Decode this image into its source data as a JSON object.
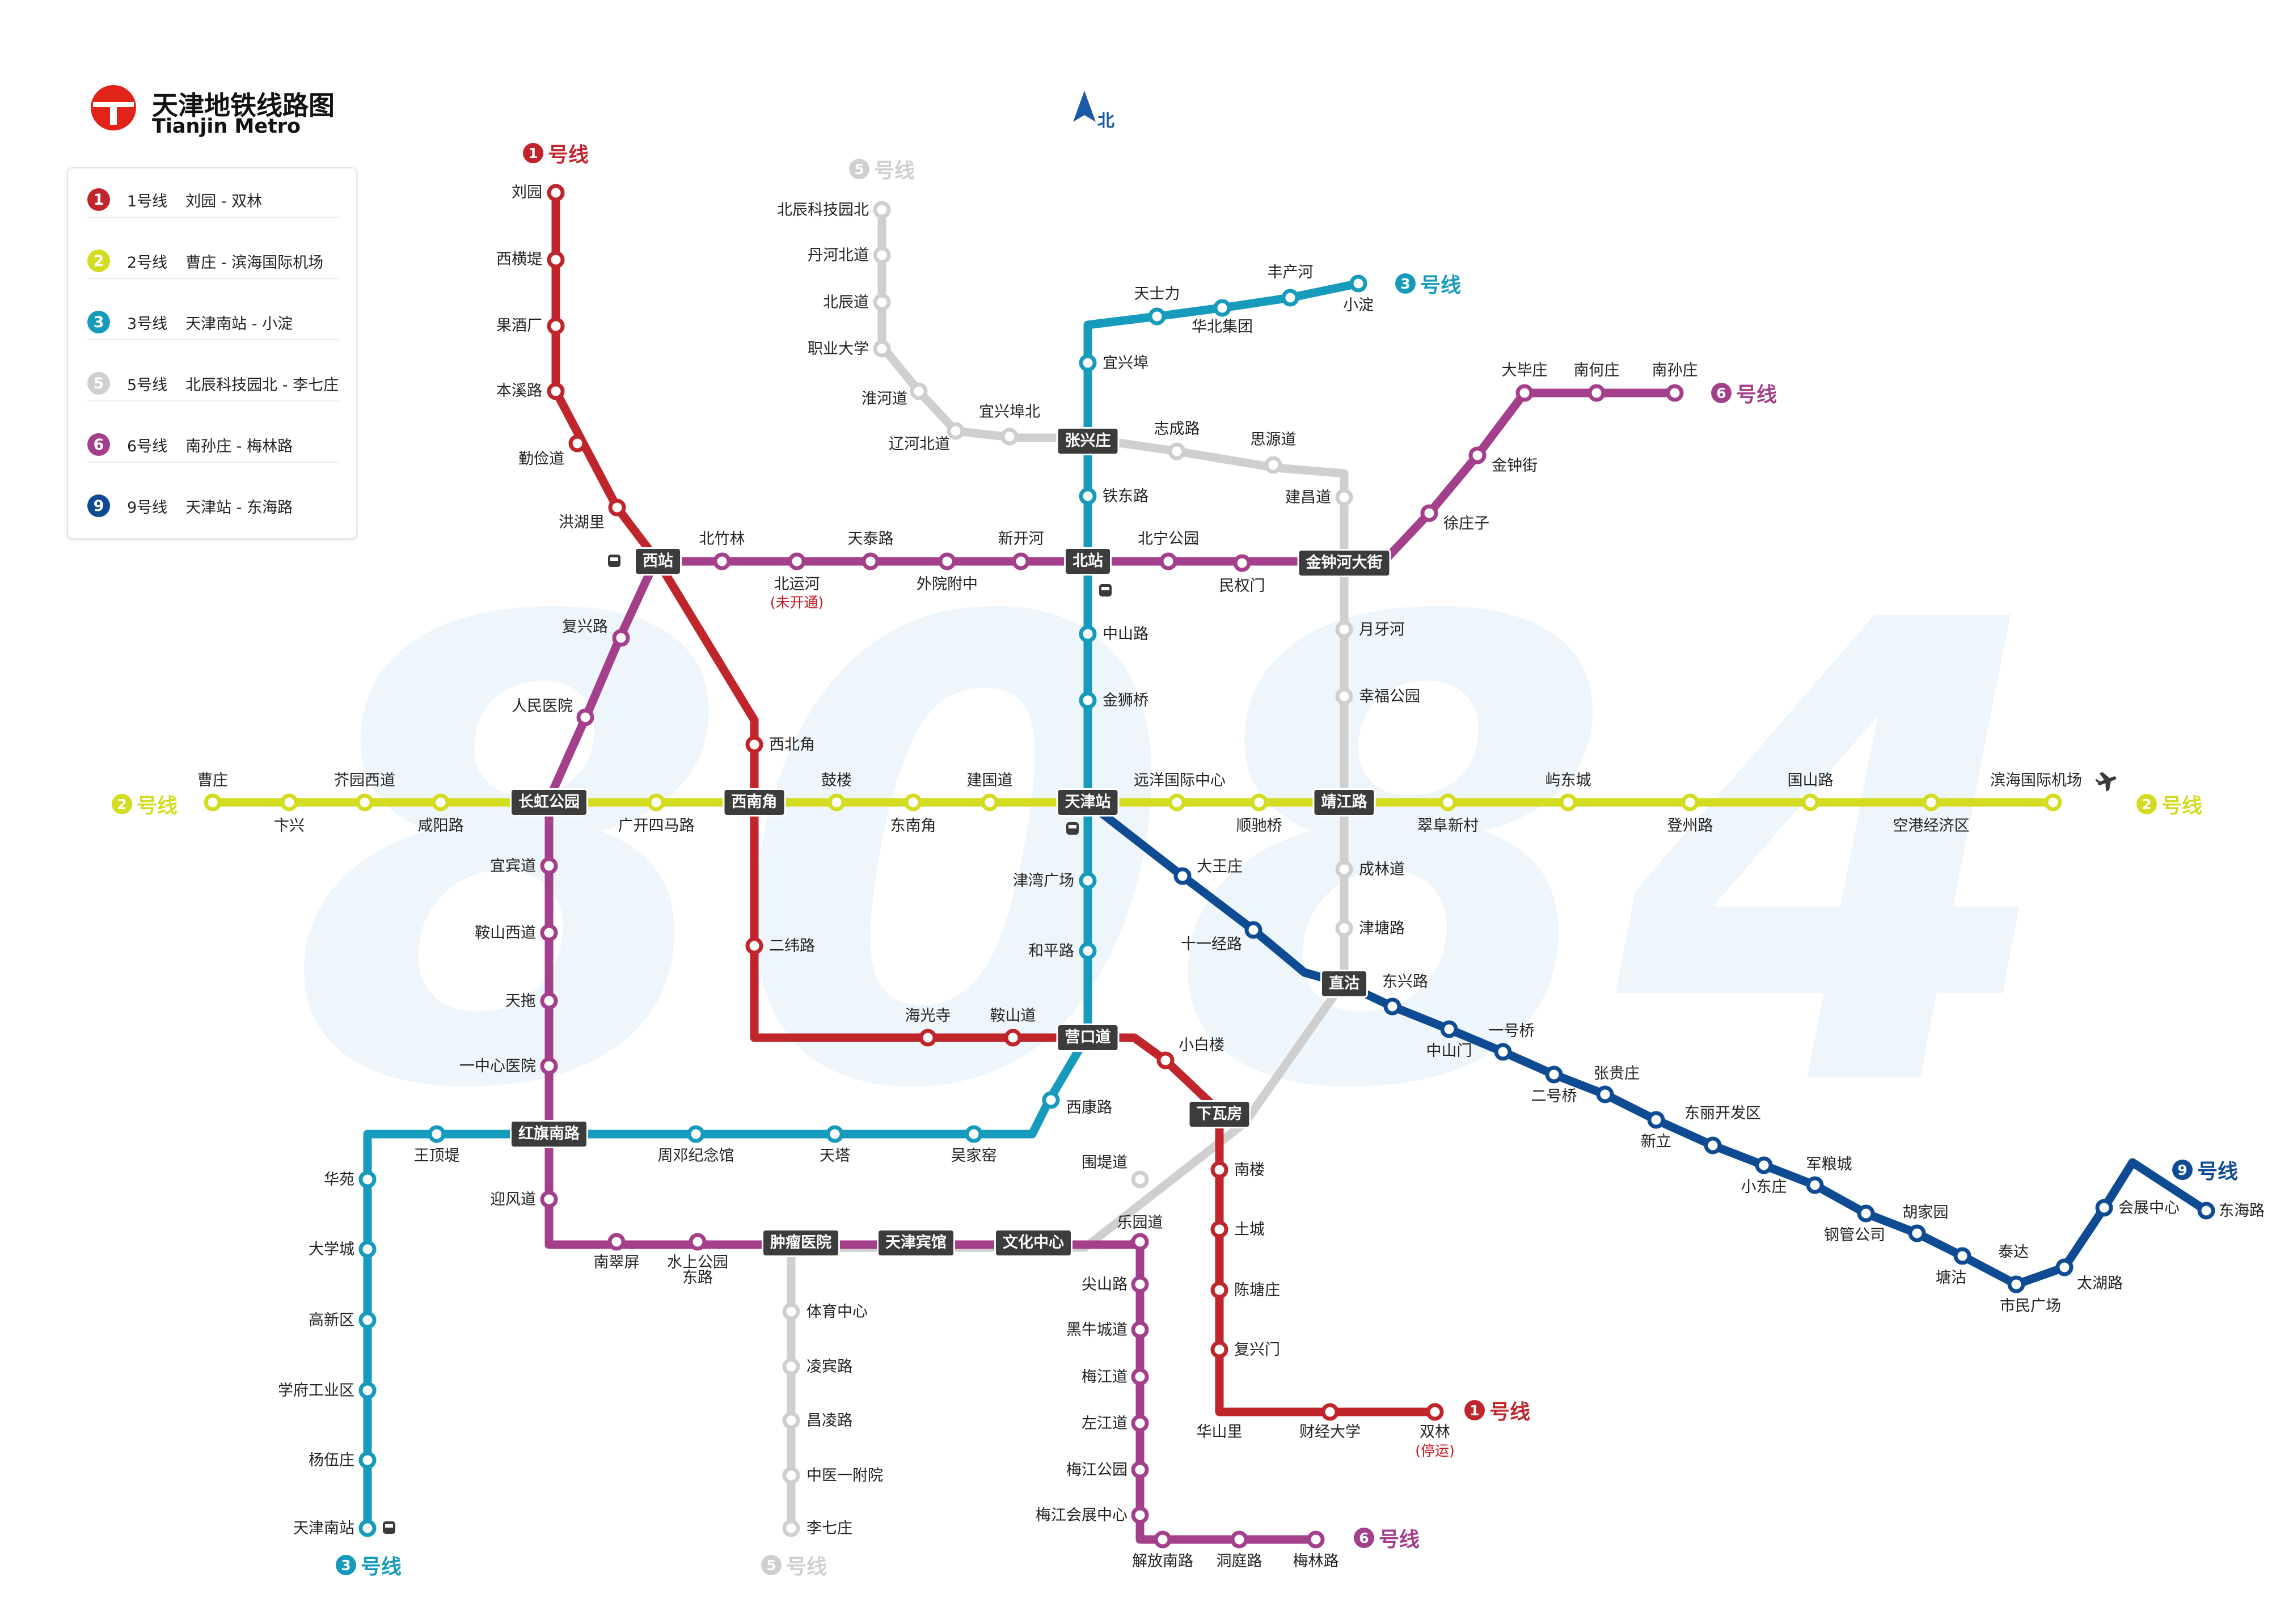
{
  "brand": {
    "title": "天津地铁线路图",
    "subtitle": "Tianjin Metro",
    "logo_color": "#e2231a"
  },
  "compass": {
    "label": "北",
    "color": "#1c5aa8"
  },
  "watermark": {
    "text": "8084",
    "color": "#eef6fc"
  },
  "legend": [
    {
      "num": "1",
      "name": "1号线",
      "route": "刘园 - 双林",
      "color": "#c0252b"
    },
    {
      "num": "2",
      "name": "2号线",
      "route": "曹庄 - 滨海国际机场",
      "color": "#d4dc21"
    },
    {
      "num": "3",
      "name": "3号线",
      "route": "天津南站 - 小淀",
      "color": "#169bbd"
    },
    {
      "num": "5",
      "name": "5号线",
      "route": "北辰科技园北 - 李七庄",
      "color": "#cfcfcf"
    },
    {
      "num": "6",
      "name": "6号线",
      "route": "南孙庄 - 梅林路",
      "color": "#a33f8b"
    },
    {
      "num": "9",
      "name": "9号线",
      "route": "天津站 - 东海路",
      "color": "#0e4b93"
    }
  ],
  "line_tags": {
    "l1_top": {
      "num": "1",
      "text": "号线"
    },
    "l1_end": {
      "num": "1",
      "text": "号线"
    },
    "l2_left": {
      "num": "2",
      "text": "号线"
    },
    "l2_right": {
      "num": "2",
      "text": "号线"
    },
    "l3_top": {
      "num": "3",
      "text": "号线"
    },
    "l3_bottom": {
      "num": "3",
      "text": "号线"
    },
    "l5_top": {
      "num": "5",
      "text": "号线"
    },
    "l5_bottom": {
      "num": "5",
      "text": "号线"
    },
    "l6_top": {
      "num": "6",
      "text": "号线"
    },
    "l6_bottom": {
      "num": "6",
      "text": "号线"
    },
    "l9": {
      "num": "9",
      "text": "号线"
    }
  },
  "interchanges": {
    "xizhan": "西站",
    "beizhan": "北站",
    "zhangxingzhuang": "张兴庄",
    "jinzhonghe": "金钟河大街",
    "changhong": "长虹公园",
    "xinanjiao": "西南角",
    "tianjinzhan": "天津站",
    "jingjianglu": "靖江路",
    "zhigu": "直沽",
    "yingkoudao": "营口道",
    "xiawafang": "下瓦房",
    "hongqinan": "红旗南路",
    "zhongliu": "肿瘤医院",
    "binguan": "天津宾馆",
    "wenhua": "文化中心"
  },
  "stations": {
    "l1": [
      "刘园",
      "西横堤",
      "果酒厂",
      "本溪路",
      "勤俭道",
      "洪湖里",
      "西北角",
      "二纬路",
      "海光寺",
      "鞍山道",
      "小白楼",
      "南楼",
      "土城",
      "陈塘庄",
      "复兴门",
      "华山里",
      "财经大学",
      "双林"
    ],
    "l1_note": "(停运)",
    "l2": [
      "曹庄",
      "卞兴",
      "芥园西道",
      "咸阳路",
      "广开四马路",
      "鼓楼",
      "东南角",
      "建国道",
      "远洋国际中心",
      "顺驰桥",
      "翠阜新村",
      "屿东城",
      "登州路",
      "国山路",
      "空港经济区",
      "滨海国际机场"
    ],
    "l3": [
      "小淀",
      "丰产河",
      "华北集团",
      "天士力",
      "宜兴埠",
      "铁东路",
      "中山路",
      "金狮桥",
      "津湾广场",
      "和平路",
      "西康路",
      "吴家窑",
      "天塔",
      "周邓纪念馆",
      "王顶堤",
      "华苑",
      "大学城",
      "高新区",
      "学府工业区",
      "杨伍庄",
      "天津南站"
    ],
    "l5": [
      "北辰科技园北",
      "丹河北道",
      "北辰道",
      "职业大学",
      "淮河道",
      "辽河北道",
      "宜兴埠北",
      "志成路",
      "思源道",
      "建昌道",
      "月牙河",
      "幸福公园",
      "成林道",
      "津塘路",
      "围堤道",
      "体育中心",
      "凌宾路",
      "昌凌路",
      "中医一附院",
      "李七庄"
    ],
    "l6": [
      "南孙庄",
      "南何庄",
      "大毕庄",
      "金钟街",
      "徐庄子",
      "民权门",
      "北宁公园",
      "新开河",
      "外院附中",
      "天泰路",
      "北运河",
      "北竹林",
      "复兴路",
      "人民医院",
      "宜宾道",
      "鞍山西道",
      "天拖",
      "一中心医院",
      "迎风道",
      "南翠屏",
      "水上公园东路",
      "乐园道",
      "尖山路",
      "黑牛城道",
      "梅江道",
      "左江道",
      "梅江公园",
      "梅江会展中心",
      "解放南路",
      "洞庭路",
      "梅林路"
    ],
    "l6_note": "(未开通)",
    "l9": [
      "十一经路",
      "大王庄",
      "东兴路",
      "中山门",
      "一号桥",
      "二号桥",
      "张贵庄",
      "新立",
      "东丽开发区",
      "小东庄",
      "军粮城",
      "钢管公司",
      "胡家园",
      "塘沽",
      "泰达",
      "市民广场",
      "太湖路",
      "会展中心",
      "东海路"
    ]
  }
}
